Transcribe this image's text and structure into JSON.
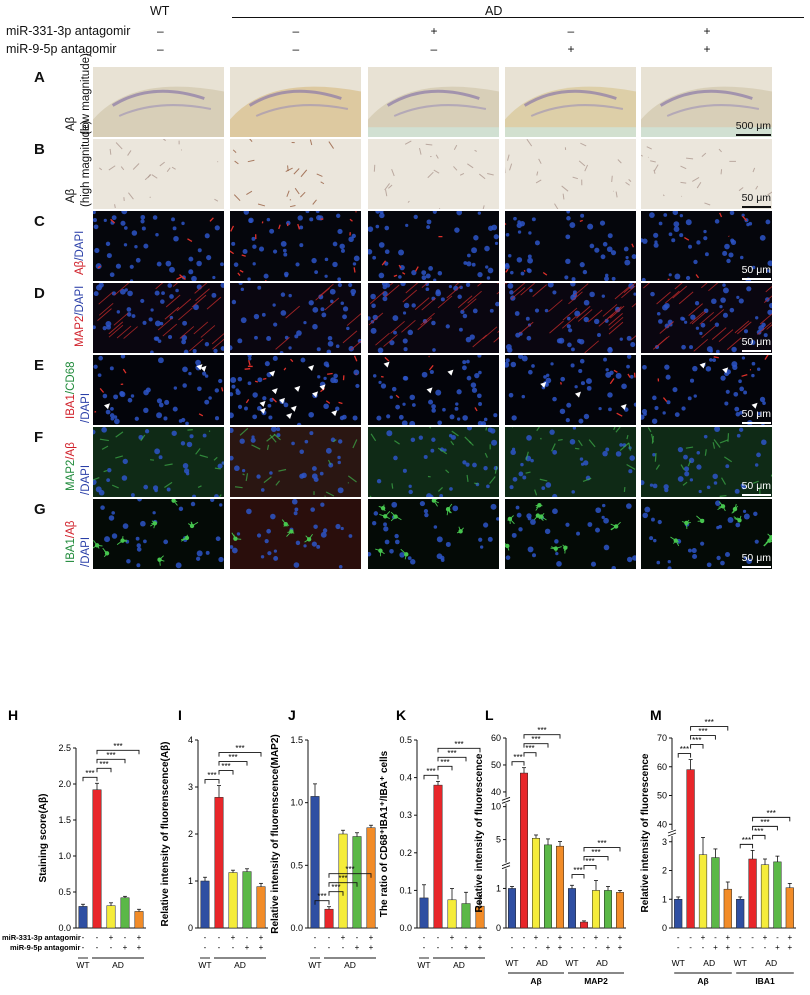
{
  "header": {
    "wt_label": "WT",
    "ad_label": "AD",
    "row1_label": "miR-331-3p antagomir",
    "row2_label": "miR-9-5p antagomir",
    "row1_signs": [
      "–",
      "–",
      "+",
      "–",
      "+"
    ],
    "row2_signs": [
      "–",
      "–",
      "–",
      "+",
      "+"
    ]
  },
  "image_rows": [
    {
      "letter": "A",
      "label_parts": [
        {
          "text": "Aβ",
          "color": "#111111"
        }
      ],
      "sublabel": "(low magnitude)",
      "scale": "500 μm",
      "style": "dab_low"
    },
    {
      "letter": "B",
      "label_parts": [
        {
          "text": "Aβ",
          "color": "#111111"
        }
      ],
      "sublabel": "(high magnitude)",
      "scale": "50 μm",
      "style": "dab_high"
    },
    {
      "letter": "C",
      "label_parts": [
        {
          "text": "Aβ",
          "color": "#d0202a"
        },
        {
          "text": "/DAPI",
          "color": "#2a3fa8"
        }
      ],
      "sublabel": "",
      "scale": "50 μm",
      "style": "abeta_dapi"
    },
    {
      "letter": "D",
      "label_parts": [
        {
          "text": "MAP2",
          "color": "#d0202a"
        },
        {
          "text": "/DAPI",
          "color": "#2a3fa8"
        }
      ],
      "sublabel": "",
      "scale": "50 μm",
      "style": "map2_dapi"
    },
    {
      "letter": "E",
      "label_parts": [
        {
          "text": "IBA1",
          "color": "#d0202a"
        },
        {
          "text": "/CD68",
          "color": "#1f8a3a"
        }
      ],
      "sublabel": "/DAPI",
      "sublabel_color": "#2a3fa8",
      "scale": "50 μm",
      "style": "iba1_cd68"
    },
    {
      "letter": "F",
      "label_parts": [
        {
          "text": "MAP2",
          "color": "#1f8a3a"
        },
        {
          "text": "/Aβ",
          "color": "#d0202a"
        }
      ],
      "sublabel": "/DAPI",
      "sublabel_color": "#2a3fa8",
      "scale": "50 μm",
      "style": "map2_abeta"
    },
    {
      "letter": "G",
      "label_parts": [
        {
          "text": "IBA1",
          "color": "#1f8a3a"
        },
        {
          "text": "/Aβ",
          "color": "#d0202a"
        }
      ],
      "sublabel": "/DAPI",
      "sublabel_color": "#2a3fa8",
      "scale": "50 μm",
      "style": "iba1_abeta"
    }
  ],
  "group_colors": [
    "#2f4fa2",
    "#e8262a",
    "#f5ec3a",
    "#5bb847",
    "#f28c28"
  ],
  "sig_label": "***",
  "axis_groups": {
    "wt": "WT",
    "ad": "AD"
  },
  "treatment_rows": {
    "r1": "miR-331-3p antagomir",
    "r2": "miR-9-5p antagomir"
  },
  "chart_data": [
    {
      "panel": "H",
      "type": "bar",
      "ylabel": "Staining score(Aβ)",
      "yticks": [
        "0.0",
        "0.5",
        "1.0",
        "1.5",
        "2.0",
        "2.5"
      ],
      "ylim": [
        0,
        2.5
      ],
      "values": [
        0.3,
        1.92,
        0.31,
        0.42,
        0.23
      ],
      "errors": [
        0.03,
        0.09,
        0.04,
        0.02,
        0.03
      ]
    },
    {
      "panel": "I",
      "type": "bar",
      "ylabel": "Relative intensity of fluorenscence(Aβ)",
      "yticks": [
        "0",
        "1",
        "2",
        "3",
        "4"
      ],
      "ylim": [
        0,
        4
      ],
      "values": [
        1.0,
        2.78,
        1.18,
        1.2,
        0.88
      ],
      "errors": [
        0.08,
        0.25,
        0.05,
        0.06,
        0.07
      ]
    },
    {
      "panel": "J",
      "type": "bar",
      "ylabel": "Relative intensity of fluorenscence(MAP2)",
      "yticks": [
        "0.0",
        "0.5",
        "1.0",
        "1.5"
      ],
      "ylim": [
        0,
        1.5
      ],
      "values": [
        1.05,
        0.15,
        0.75,
        0.73,
        0.8
      ],
      "errors": [
        0.1,
        0.02,
        0.03,
        0.03,
        0.02
      ]
    },
    {
      "panel": "K",
      "type": "bar",
      "ylabel": "The ratio of CD68⁺IBA1⁺/IBA⁺ cells",
      "yticks": [
        "0.0",
        "0.1",
        "0.2",
        "0.3",
        "0.4",
        "0.5"
      ],
      "ylim": [
        0,
        0.5
      ],
      "values": [
        0.08,
        0.38,
        0.075,
        0.065,
        0.058
      ],
      "errors": [
        0.035,
        0.01,
        0.03,
        0.03,
        0.025
      ]
    },
    {
      "panel": "L",
      "type": "bar",
      "ylabel": "Relative intensity of fluorescence",
      "yticks": [
        "0",
        "1",
        "5",
        "10",
        "40",
        "50",
        "60"
      ],
      "broken_axis": [
        [
          0,
          1.5
        ],
        [
          1.5,
          10.5
        ],
        [
          38,
          60
        ]
      ],
      "groups": [
        {
          "name": "Aβ",
          "values": [
            1.0,
            47,
            5.2,
            4.2,
            4.0
          ],
          "errors": [
            0.05,
            2.0,
            0.5,
            0.9,
            0.7
          ]
        },
        {
          "name": "MAP2",
          "values": [
            1.0,
            0.15,
            0.95,
            0.95,
            0.9
          ],
          "errors": [
            0.08,
            0.03,
            0.25,
            0.1,
            0.05
          ]
        }
      ]
    },
    {
      "panel": "M",
      "type": "bar",
      "ylabel": "Relative intensity of fluorescence",
      "yticks": [
        "0",
        "1",
        "2",
        "3",
        "40",
        "50",
        "60",
        "70"
      ],
      "broken_axis": [
        [
          0,
          3.2
        ],
        [
          38,
          70
        ]
      ],
      "groups": [
        {
          "name": "Aβ",
          "values": [
            1.0,
            59,
            2.55,
            2.45,
            1.35
          ],
          "errors": [
            0.08,
            3.5,
            0.6,
            0.3,
            0.25
          ]
        },
        {
          "name": "IBA1",
          "values": [
            1.0,
            2.4,
            2.2,
            2.3,
            1.4
          ],
          "errors": [
            0.08,
            0.3,
            0.2,
            0.2,
            0.15
          ]
        }
      ]
    }
  ]
}
